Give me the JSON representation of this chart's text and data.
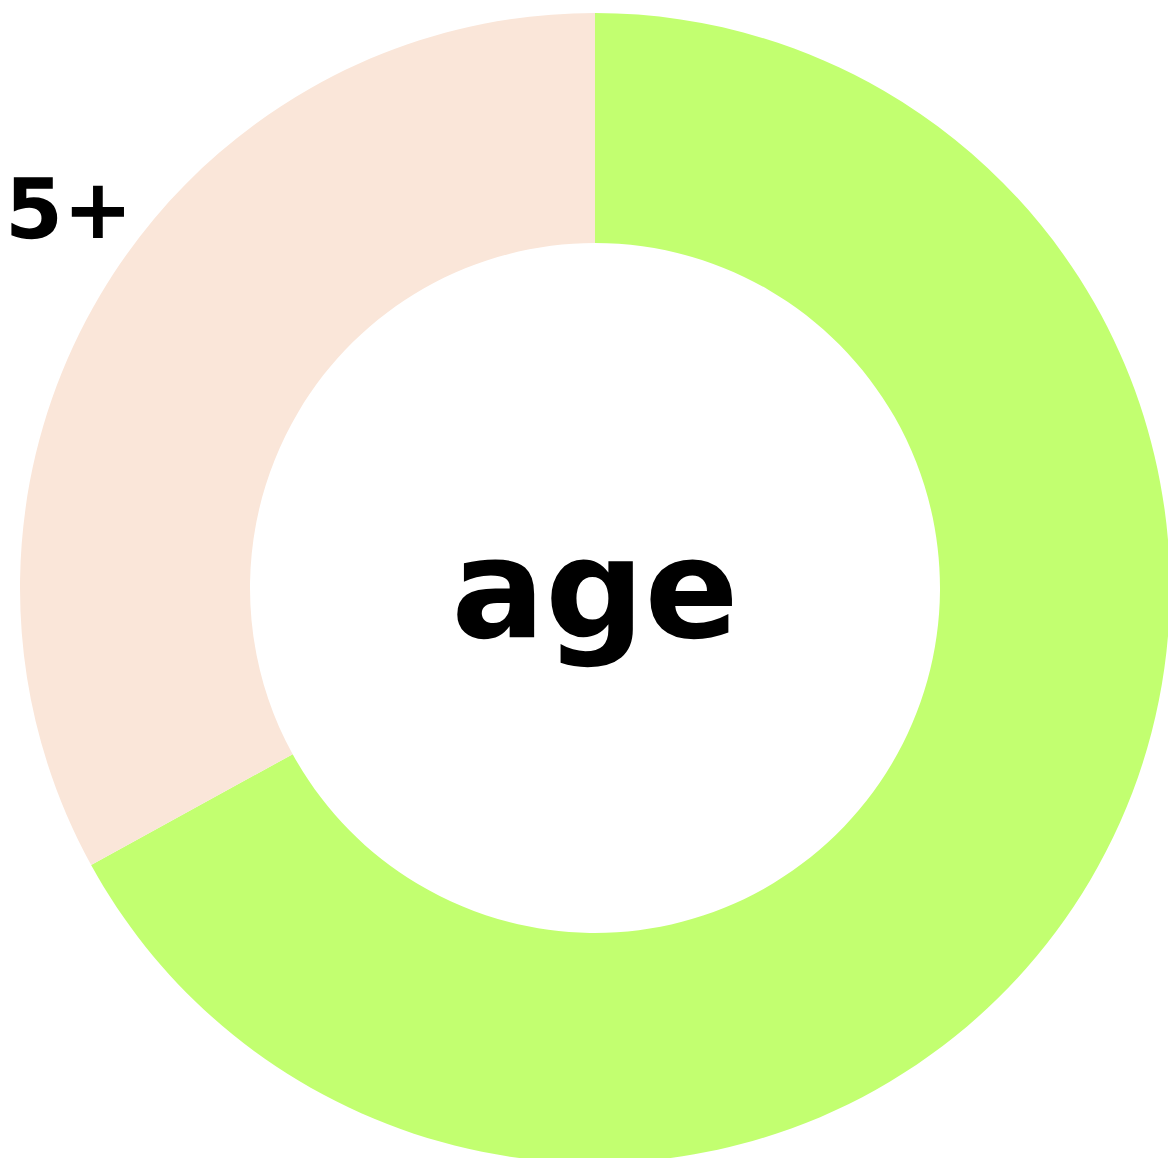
{
  "chart_data": {
    "type": "donut",
    "categories": [
      null,
      null
    ],
    "values": [
      67,
      33
    ],
    "colors": [
      "#c2ff70",
      "#fae6d9"
    ],
    "annotations": [
      "age",
      "5+"
    ]
  }
}
